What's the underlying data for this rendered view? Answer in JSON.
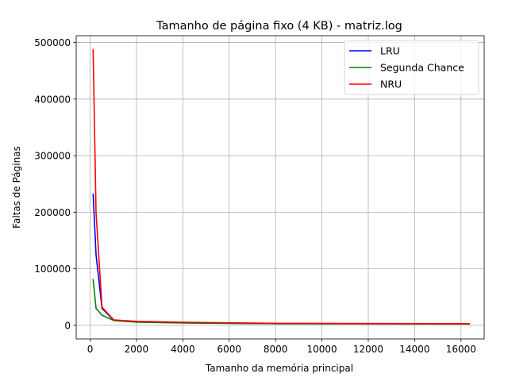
{
  "chart_data": {
    "type": "line",
    "title": "Tamanho de página fixo (4 KB) - matriz.log",
    "xlabel": "Tamanho da memória principal",
    "ylabel": "Faltas de Páginas",
    "xlim": [
      -600,
      17000
    ],
    "ylim": [
      -24000,
      512000
    ],
    "xticks": [
      0,
      2000,
      4000,
      6000,
      8000,
      10000,
      12000,
      14000,
      16000
    ],
    "yticks": [
      0,
      100000,
      200000,
      300000,
      400000,
      500000
    ],
    "grid": true,
    "legend_position": "top-right",
    "x": [
      128,
      256,
      512,
      1024,
      2048,
      4096,
      8192,
      16384
    ],
    "series": [
      {
        "name": "LRU",
        "color": "#0000ff",
        "values": [
          233000,
          125000,
          30000,
          9000,
          6000,
          4500,
          3000,
          2500
        ]
      },
      {
        "name": "Segunda Chance",
        "color": "#008000",
        "values": [
          82000,
          30000,
          18000,
          8500,
          5500,
          4000,
          3000,
          2500
        ]
      },
      {
        "name": "NRU",
        "color": "#ff0000",
        "values": [
          488000,
          200000,
          32000,
          9500,
          7000,
          5500,
          3500,
          3000
        ]
      }
    ]
  }
}
